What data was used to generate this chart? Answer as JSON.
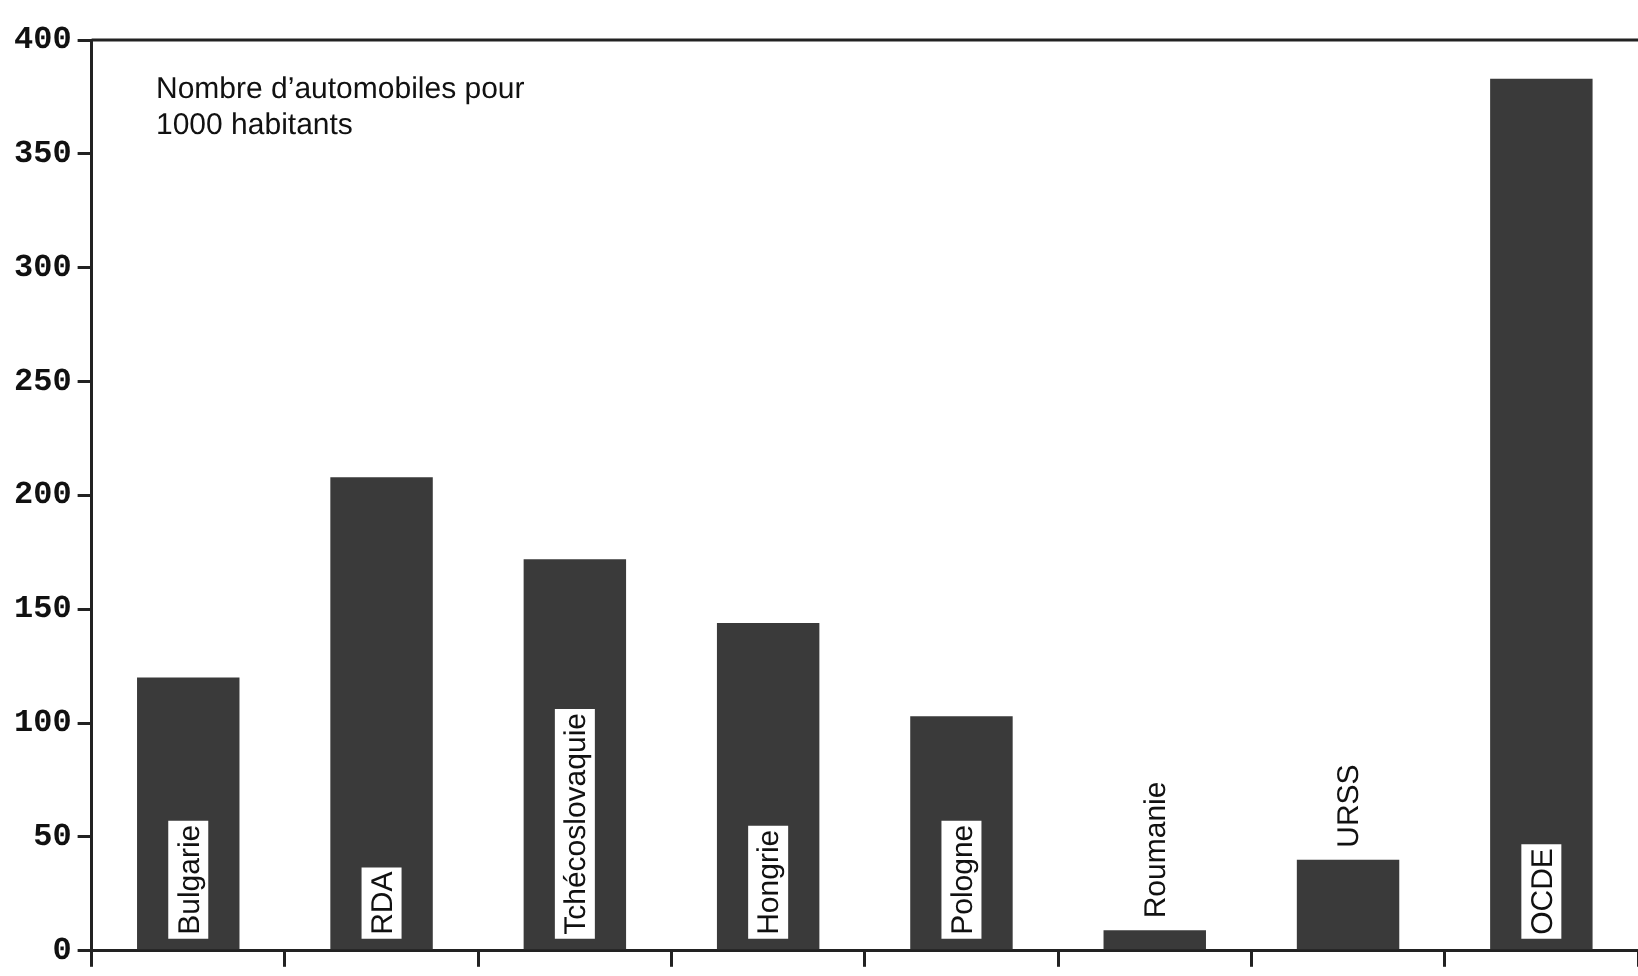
{
  "chart_data": {
    "type": "bar",
    "title": "Nombre d’automobiles pour 1000 habitants",
    "categories": [
      "Bulgarie",
      "RDA",
      "Tchécoslovaquie",
      "Hongrie",
      "Pologne",
      "Roumanie",
      "URSS",
      "OCDE"
    ],
    "values": [
      120,
      208,
      172,
      144,
      103,
      9,
      40,
      383
    ],
    "color": "#3a3a3a",
    "ylim": [
      0,
      400
    ],
    "yticks": [
      0,
      50,
      100,
      150,
      200,
      250,
      300,
      350,
      400
    ],
    "grid": false,
    "legend": false
  }
}
